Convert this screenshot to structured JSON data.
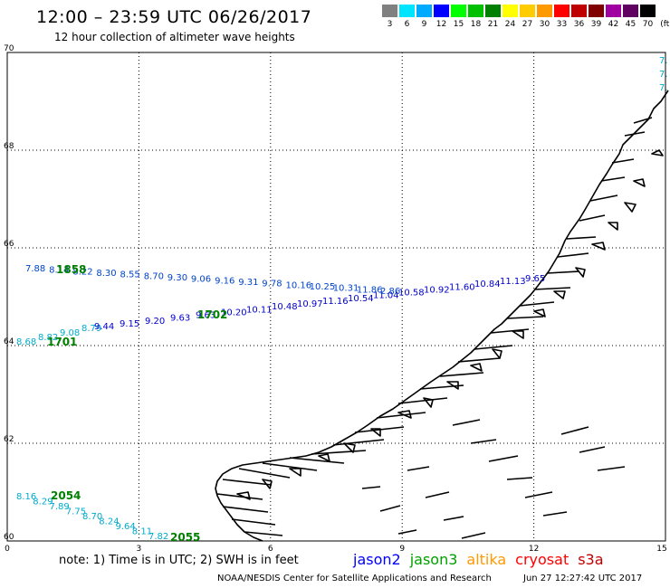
{
  "header": {
    "title": "12:00 – 23:59 UTC 06/26/2017",
    "subtitle": "12 hour collection of altimeter wave heights"
  },
  "legend": {
    "unit": "(ft)",
    "bins": [
      {
        "label": "3",
        "color": "#808080"
      },
      {
        "label": "6",
        "color": "#00e5ff"
      },
      {
        "label": "9",
        "color": "#00aaff"
      },
      {
        "label": "12",
        "color": "#0000ff"
      },
      {
        "label": "15",
        "color": "#00ff00"
      },
      {
        "label": "18",
        "color": "#00c000"
      },
      {
        "label": "21",
        "color": "#008000"
      },
      {
        "label": "24",
        "color": "#ffff00"
      },
      {
        "label": "27",
        "color": "#ffcc00"
      },
      {
        "label": "30",
        "color": "#ff9900"
      },
      {
        "label": "33",
        "color": "#ff0000"
      },
      {
        "label": "36",
        "color": "#c00000"
      },
      {
        "label": "39",
        "color": "#800000"
      },
      {
        "label": "42",
        "color": "#a000a0"
      },
      {
        "label": "45",
        "color": "#600060"
      },
      {
        "label": "70",
        "color": "#000000"
      }
    ]
  },
  "axes": {
    "lat_ticks": [
      "70",
      "68",
      "66",
      "64",
      "62",
      "60"
    ],
    "lon_ticks": [
      "0",
      "3",
      "6",
      "9",
      "12",
      "15"
    ]
  },
  "tracks": [
    {
      "id": "1701",
      "color": "#00aacc",
      "id_color": "#008000",
      "values": [
        "8.68",
        "8.82",
        "9.08",
        "8.79"
      ]
    },
    {
      "id": "1702",
      "color": "#0000cc",
      "id_color": "#008000",
      "values": [
        "9.44",
        "9.15",
        "9.20",
        "9.63",
        "9.63",
        "10.20",
        "10.11",
        "10.48",
        "10.97",
        "11.16",
        "10.54",
        "11.04",
        "10.58",
        "10.92",
        "11.60",
        "10.84",
        "11.13",
        "9.65"
      ]
    },
    {
      "id": "1858",
      "color": "#0044cc",
      "id_color": "#008000",
      "values": [
        "7.88",
        "8.14",
        "8.22",
        "8.30",
        "8.55",
        "8.70",
        "9.30",
        "9.06",
        "9.16",
        "9.31",
        "9.78",
        "10.16",
        "10.25",
        "10.31",
        "11.86",
        "2.86"
      ]
    },
    {
      "id": "2054",
      "color": "#00aacc",
      "id_color": "#008000",
      "values": [
        "8.16",
        "8.29",
        "7.89",
        "7.75",
        "8.70",
        "8.24",
        "9.64",
        "8.11",
        "7.82"
      ]
    },
    {
      "id": "2055",
      "color": "#008000",
      "id_color": "#008000",
      "values": []
    }
  ],
  "edge_values": [
    "7.",
    "7.",
    "7."
  ],
  "footer": {
    "note": "note: 1) Time is in UTC; 2) SWH is in feet",
    "satellites": [
      {
        "name": "jason2",
        "color": "#0000ff"
      },
      {
        "name": "jason3",
        "color": "#00a000"
      },
      {
        "name": "altika",
        "color": "#ff9900"
      },
      {
        "name": "cryosat",
        "color": "#ff0000"
      },
      {
        "name": "s3a",
        "color": "#c00000"
      }
    ],
    "credit": "NOAA/NESDIS Center for Satellite Applications and Research",
    "timestamp": "Jun 27 12:27:42 UTC 2017"
  }
}
